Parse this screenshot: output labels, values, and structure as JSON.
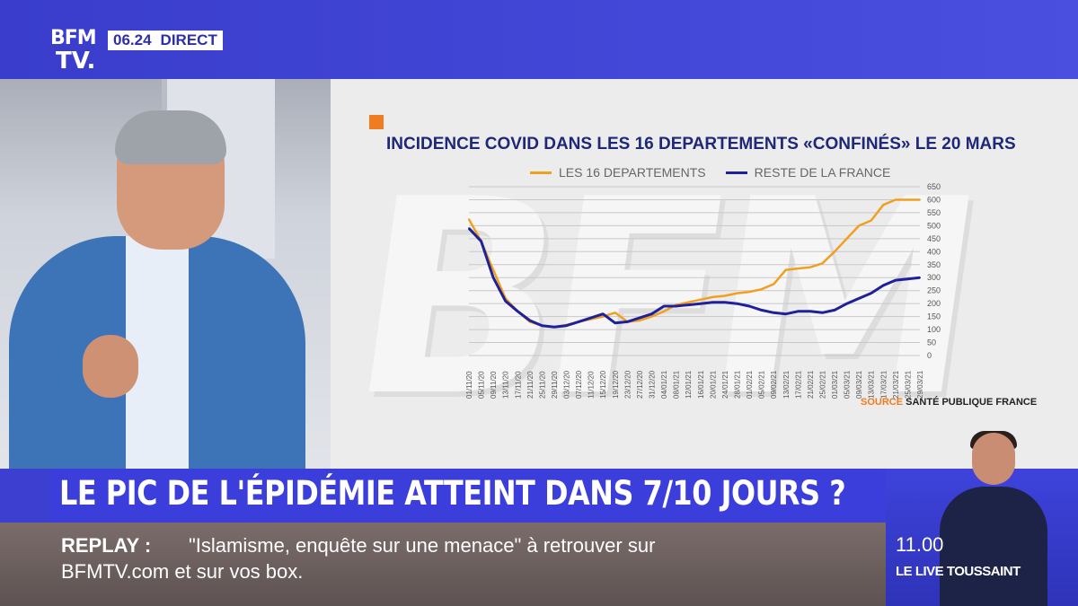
{
  "channel": {
    "logo_line1": "BFM",
    "logo_line2": "TV.",
    "time": "06.24",
    "live_label": "DIRECT"
  },
  "headline": "LE PIC DE L'ÉPIDÉMIE ATTEINT DANS 7/10 JOURS ?",
  "ticker": {
    "label": "REPLAY :",
    "line1": "\"Islamisme, enquête sur une menace\" à retrouver sur",
    "line2": "BFMTV.com et sur vos box."
  },
  "promo": {
    "time": "11.00",
    "show": "LE LIVE TOUSSAINT"
  },
  "source": {
    "prefix": "SOURCE",
    "name": "SANTÉ PUBLIQUE FRANCE"
  },
  "colors": {
    "series1": "#f0a020",
    "series2": "#20209a",
    "title": "#1f2878",
    "accent": "#f07c20"
  },
  "chart_data": {
    "type": "line",
    "title": "INCIDENCE COVID DANS LES 16 DEPARTEMENTS «CONFINÉS» LE 20 MARS",
    "ylim": [
      0,
      650
    ],
    "yticks": [
      0,
      50,
      100,
      150,
      200,
      250,
      300,
      350,
      400,
      450,
      500,
      550,
      600,
      650
    ],
    "grid": true,
    "legend_position": "top",
    "x_tick_labels": [
      "01/11/20",
      "05/11/20",
      "09/11/20",
      "13/11/20",
      "17/11/20",
      "21/11/20",
      "25/11/20",
      "29/11/20",
      "03/12/20",
      "07/12/20",
      "11/12/20",
      "15/12/20",
      "19/12/20",
      "23/12/20",
      "27/12/20",
      "31/12/20",
      "04/01/21",
      "08/01/21",
      "12/01/21",
      "16/01/21",
      "20/01/21",
      "24/01/21",
      "28/01/21",
      "01/02/21",
      "05/02/21",
      "09/02/21",
      "13/02/21",
      "17/02/21",
      "21/02/21",
      "25/02/21",
      "01/03/21",
      "05/03/21",
      "09/03/21",
      "13/03/21",
      "17/03/21",
      "21/03/21",
      "25/03/21",
      "29/03/21"
    ],
    "series": [
      {
        "name": "LES 16 DEPARTEMENTS",
        "values": [
          525,
          440,
          330,
          220,
          170,
          130,
          115,
          110,
          118,
          130,
          140,
          150,
          165,
          130,
          135,
          150,
          170,
          195,
          205,
          215,
          225,
          230,
          240,
          245,
          255,
          275,
          330,
          335,
          340,
          355,
          400,
          450,
          500,
          520,
          580,
          600,
          600,
          600
        ]
      },
      {
        "name": "RESTE DE LA FRANCE",
        "values": [
          490,
          440,
          300,
          210,
          170,
          135,
          115,
          110,
          115,
          130,
          145,
          160,
          125,
          130,
          145,
          160,
          190,
          190,
          195,
          200,
          205,
          205,
          200,
          190,
          175,
          165,
          160,
          170,
          170,
          165,
          175,
          200,
          220,
          240,
          270,
          290,
          295,
          300
        ]
      }
    ]
  }
}
